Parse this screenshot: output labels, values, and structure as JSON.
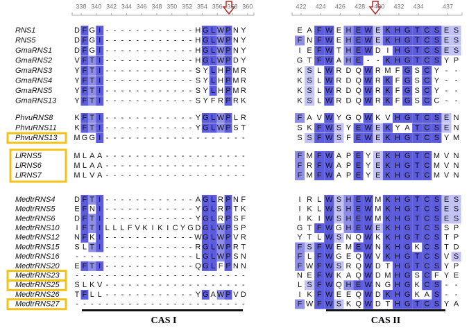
{
  "ruler_left": [
    338,
    340,
    342,
    344,
    346,
    348,
    350,
    352,
    354,
    356,
    358,
    360
  ],
  "ruler_right": [
    422,
    424,
    426,
    428,
    430,
    432,
    434,
    437
  ],
  "groups": [
    {
      "rows": [
        {
          "name": "RNS1",
          "left": "DFGI------------HGLWPNY",
          "right": "EAFWEHEWEKHGTCSES"
        },
        {
          "name": "RNS5",
          "left": "DFGI------------HGLWPNY",
          "right": "FNFWEHEWEKHGTCSES"
        },
        {
          "name": "GmaRNS1",
          "left": "DFGI------------HGLWPNY",
          "right": "IEFWTHEWDIHGTCSES"
        },
        {
          "name": "GmaRNS2",
          "left": "VFTI------------HGLWPDY",
          "right": "GTFWAHE--KHGTCSYP"
        },
        {
          "name": "GmaRNS3",
          "left": "YFTI------------SYLHPMR",
          "right": "KSLWRDQWRMFGSCY--"
        },
        {
          "name": "GmaRNS4",
          "left": "YFTI------------SYLHPMR",
          "right": "KSLWRDQWRKFGSCY--"
        },
        {
          "name": "GmaRNS5",
          "left": "YFTI------------SYLHPMR",
          "right": "KSLWRDQWRKFGSCY--"
        },
        {
          "name": "GmaRNS13",
          "left": "YFTI------------SYFRPRK",
          "right": "KSLWRDQWRKFGSCC--"
        }
      ]
    },
    {
      "rows": [
        {
          "name": "PhvuRNS8",
          "left": "KFTI------------YGLWPLR",
          "right": "FAVWYGQWKVHGTCSEN"
        },
        {
          "name": "PhvuRNS11",
          "left": "KFTI------------YGLWPST",
          "right": "SKFWSYEWEKYATCSEN"
        },
        {
          "name": "PhvuRNS13",
          "boxed": true,
          "left": "MGGI-------------------",
          "right": "SSFWSFEWEKHGTCSYM"
        }
      ]
    },
    {
      "boxed": true,
      "rows": [
        {
          "name": "LlRNS5",
          "left": "MLAA-------------------",
          "right": "FMFWAPEYEKHGTCMVN"
        },
        {
          "name": "LlRNS6",
          "left": "MLAA-------------------",
          "right": "FRFWAPEYEKHGTCMVN"
        },
        {
          "name": "LlRNS7",
          "left": "MLVA-------------------",
          "right": "FMFWAPEYEKHGTCMVN"
        }
      ]
    },
    {
      "rows": [
        {
          "name": "MedtrRNS4",
          "left": "DFTI------------AGLRPNF",
          "right": "IRLWSHEWMKHGTCSES"
        },
        {
          "name": "MedtrRNS5",
          "left": "EFNI------------YGLRPTK",
          "right": "IKLWSHEWMKHGTCSES"
        },
        {
          "name": "MedtrRNS6",
          "left": "DFTI------------YGLRPSF",
          "right": "IKIWSHEWMKHGTCSES"
        },
        {
          "name": "MedtrRNS10",
          "left": "IFTILLLFVKIKICYGDGLWPSP",
          "right": "GTFWGHEWEKHGTCSSP"
        },
        {
          "name": "MedtrRNS12",
          "left": "NFKI------------WGLWPVR",
          "right": "YTLWSNQWKKHGTCSTP"
        },
        {
          "name": "MedtrRNS15",
          "left": "SLTI------------RGLWPRT",
          "right": "FSFWEMEWNKHGKCSTD"
        },
        {
          "name": "MedtrRNS16",
          "left": "----------------LGLWPSN",
          "right": "FLFWGEQWVKHGTCSVS"
        },
        {
          "name": "MedtrRNS20",
          "left": "EFTI------------QGLFPNN",
          "right": "FWFWSRQWDTHGTCSYP"
        },
        {
          "name": "MedtrRNS23",
          "boxed": true,
          "left": "-----------------------",
          "right": "NEFWKAQWDMHGSCFYE"
        },
        {
          "name": "MedtrRNS25",
          "boxed": true,
          "left": "SLKV-------------------",
          "right": "LSFWQHEWNGHGKCS--"
        },
        {
          "name": "MedtrRNS26",
          "left": "TFLL------------YGAWPVD",
          "right": "IKFWEEQWDKHGKAS--"
        },
        {
          "name": "MedtrRNS27",
          "boxed": true,
          "left": "-----------------------",
          "right": "FWFWSKQWDTHGTCSYA"
        }
      ]
    }
  ],
  "labels": {
    "cas1": "CAS I",
    "cas2": "CAS II"
  }
}
